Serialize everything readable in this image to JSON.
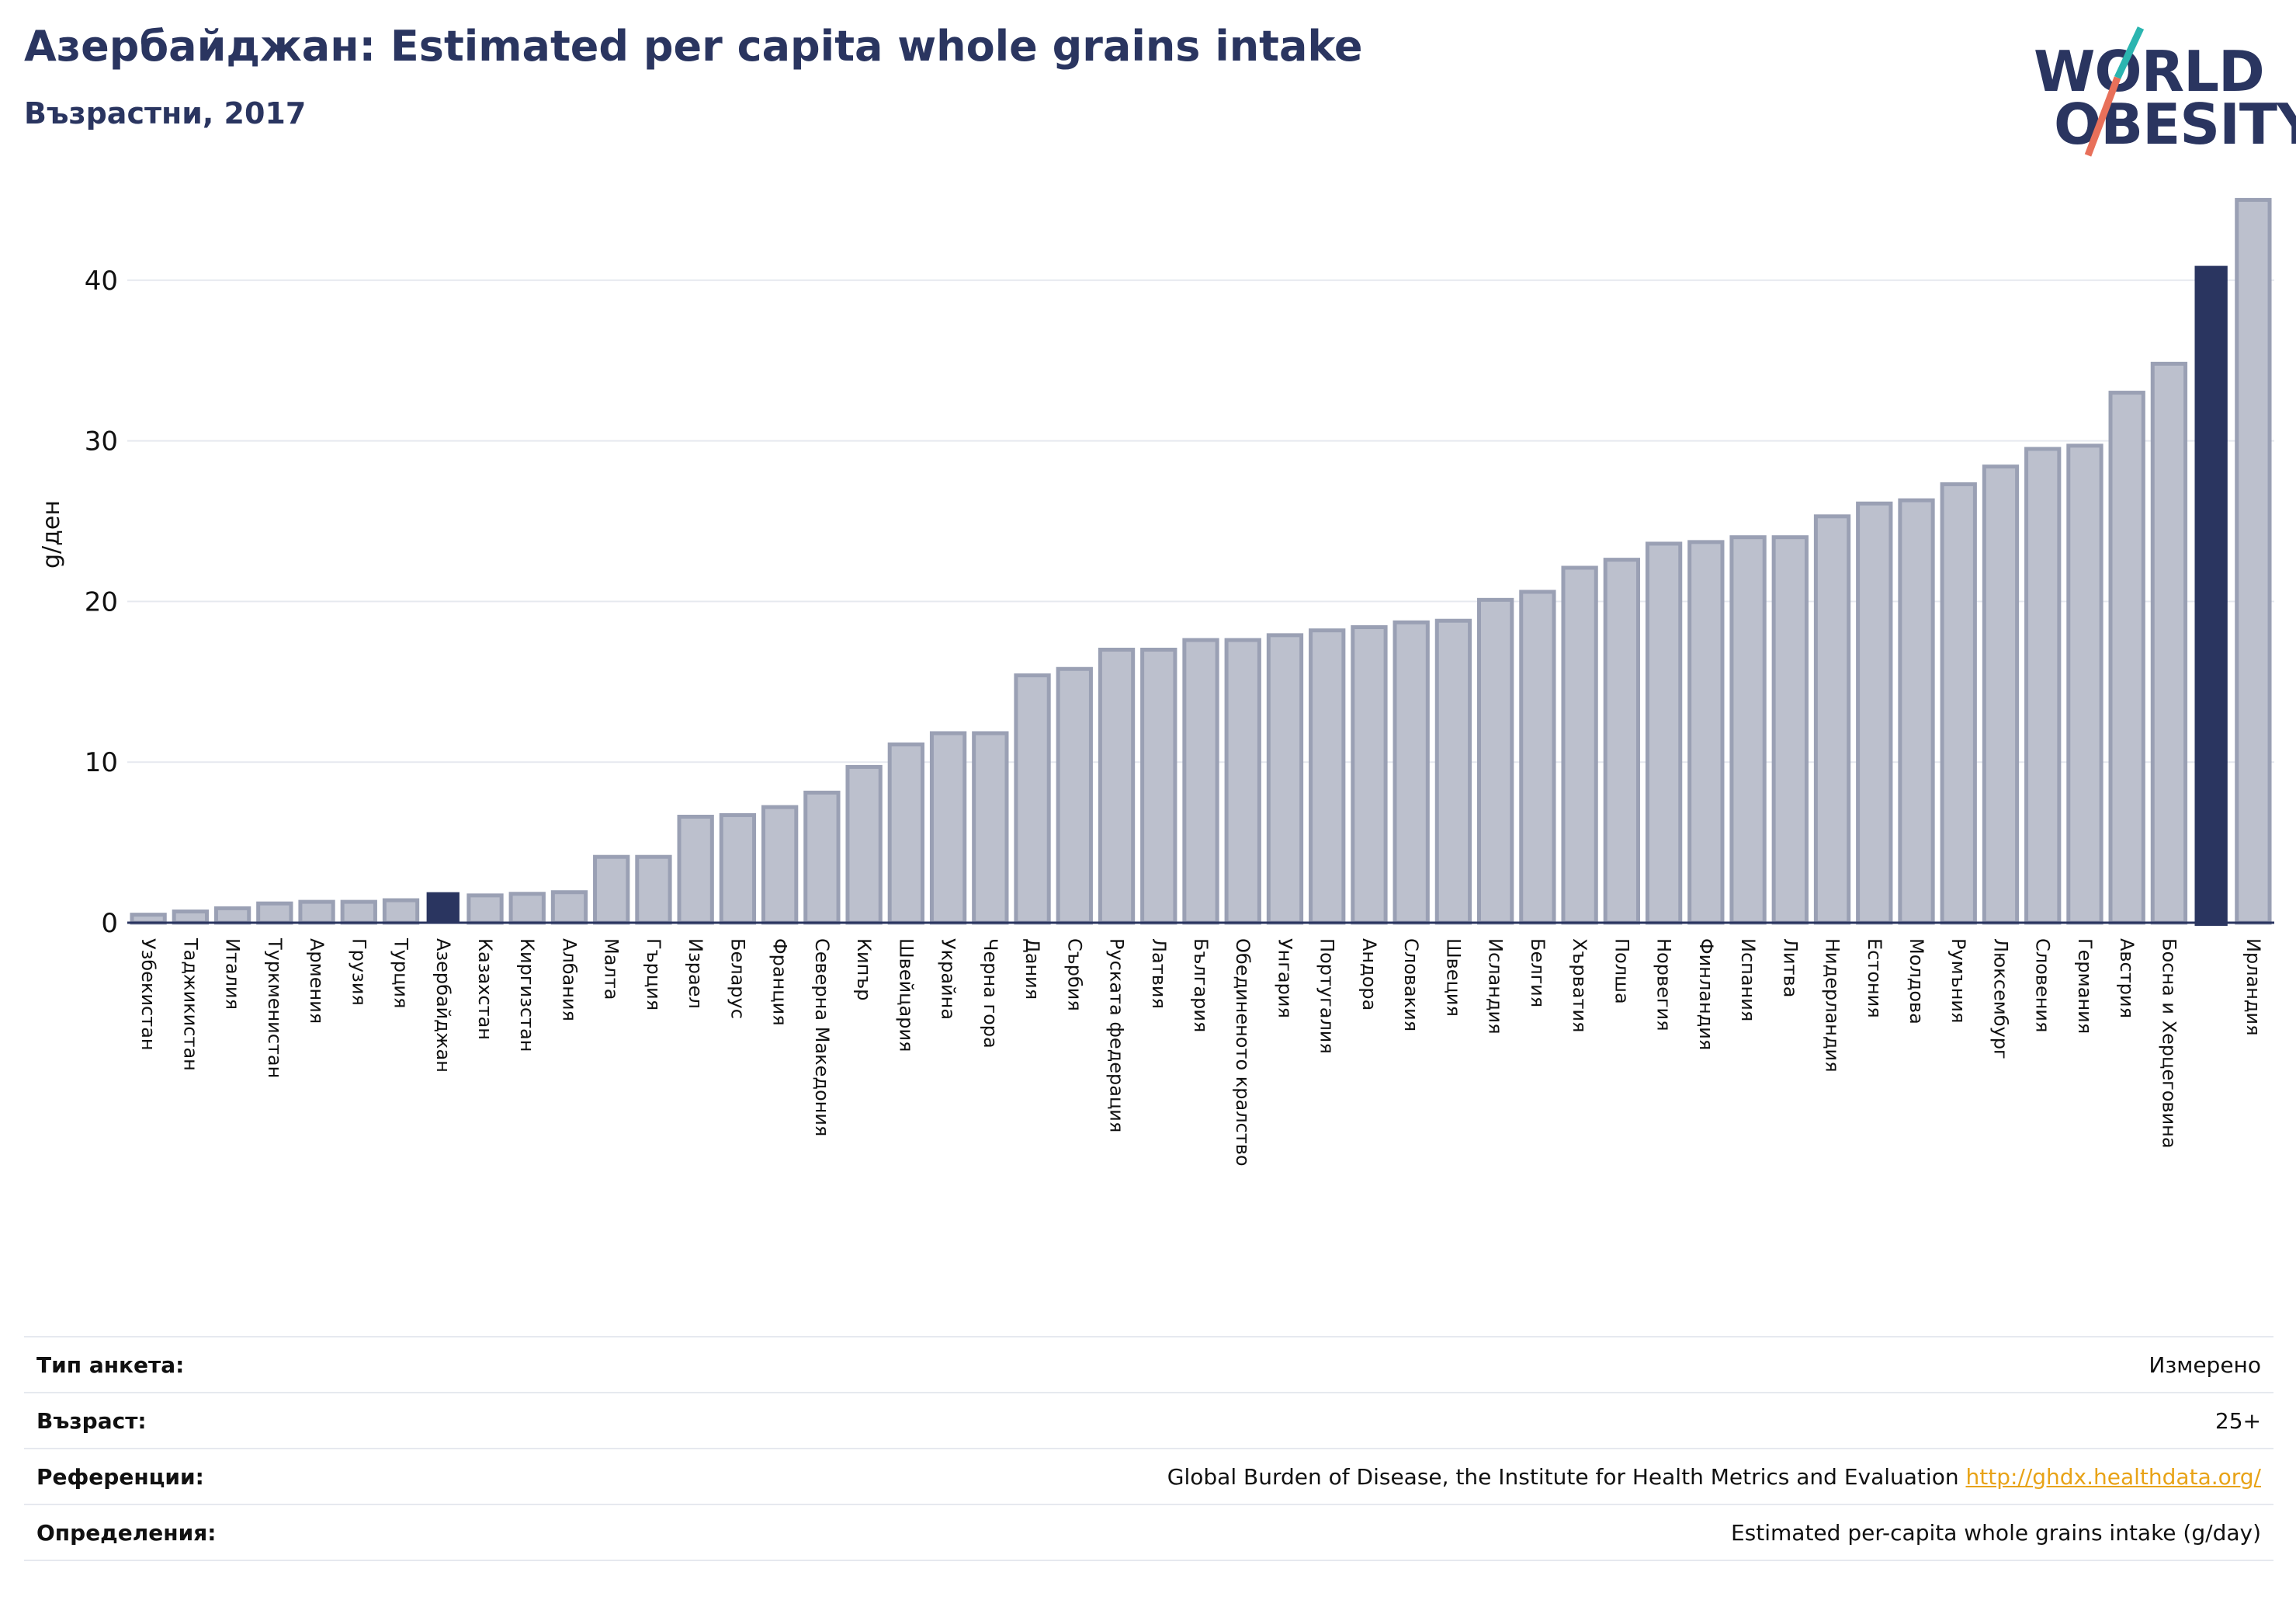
{
  "header": {
    "title": "Азербайджан: Estimated per capita whole grains intake",
    "subtitle": "Възрастни, 2017"
  },
  "logo": {
    "line1": "WORLD",
    "line2": "OBESITY",
    "colors": {
      "text": "#2a3560",
      "slash_top": "#2bb5b0",
      "slash_bottom": "#e8705a"
    }
  },
  "chart_data": {
    "type": "bar",
    "ylabel": "g/ден",
    "xlabel": "",
    "ylim": [
      0,
      46
    ],
    "yticks": [
      0,
      10,
      20,
      30,
      40
    ],
    "grid": true,
    "highlight_colors": {
      "normal_fill": "#bcc0cd",
      "normal_stroke": "#9aa0b4",
      "highlight": "#2a3560"
    },
    "highlighted": [
      "Азербайджан",
      "Ирландия"
    ],
    "categories": [
      "Узбекистан",
      "Таджикистан",
      "Италия",
      "Туркменистан",
      "Армения",
      "Грузия",
      "Турция",
      "Азербайджан",
      "Казахстан",
      "Киргизстан",
      "Албания",
      "Малта",
      "Гърция",
      "Израел",
      "Беларус",
      "Франция",
      "Северна Македония",
      "Кипър",
      "Швейцария",
      "Украйна",
      "Черна гора",
      "Дания",
      "Сърбия",
      "Руската федерация",
      "Латвия",
      "България",
      "Обединеното кралство",
      "Унгария",
      "Португалия",
      "Андора",
      "Словакия",
      "Швеция",
      "Исландия",
      "Белгия",
      "Хърватия",
      "Полша",
      "Норвегия",
      "Финландия",
      "Испания",
      "Литва",
      "Нидерландия",
      "Естония",
      "Молдова",
      "Румъния",
      "Люксембург",
      "Словения",
      "Германия",
      "Австрия",
      "Босна и Херцеговина",
      "Ирландия"
    ],
    "values": [
      0.5,
      0.7,
      0.9,
      1.2,
      1.3,
      1.3,
      1.4,
      1.9,
      1.7,
      1.8,
      1.9,
      4.1,
      4.1,
      6.6,
      6.7,
      7.2,
      8.1,
      9.7,
      11.1,
      11.8,
      11.8,
      15.4,
      15.8,
      17.0,
      17.0,
      17.6,
      17.6,
      17.9,
      18.2,
      18.4,
      18.7,
      18.8,
      20.1,
      20.6,
      22.1,
      22.6,
      23.6,
      23.7,
      24.0,
      24.0,
      25.3,
      26.1,
      26.3,
      27.3,
      28.4,
      29.5,
      29.7,
      33.0,
      34.8,
      45.0
    ],
    "extra_bar": {
      "label": "",
      "value": 40.9,
      "position": "between Босна и Херцеговина and Ирландия"
    }
  },
  "info": {
    "rows": [
      {
        "label": "Тип анкета:",
        "value": "Измерено"
      },
      {
        "label": "Възраст:",
        "value": "25+"
      },
      {
        "label": "Референции:",
        "value": "Global Burden of Disease, the Institute for Health Metrics and Evaluation",
        "link": "http://ghdx.healthdata.org/"
      },
      {
        "label": "Определения:",
        "value": "Estimated per-capita whole grains intake (g/day)"
      }
    ]
  }
}
